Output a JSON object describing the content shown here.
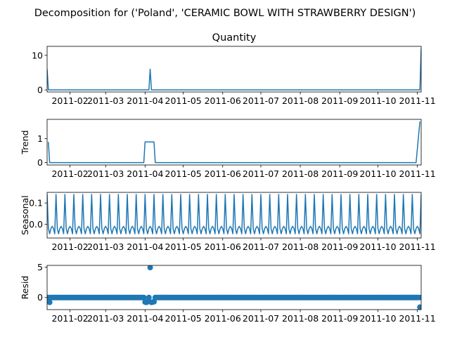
{
  "figure": {
    "suptitle": "Decomposition for ('Poland', 'CERAMIC BOWL WITH STRAWBERRY DESIGN')"
  },
  "colors": {
    "line": "#1f77b4",
    "axis": "#000000",
    "background": "#ffffff"
  },
  "chart_data": [
    {
      "type": "line",
      "title": "Quantity",
      "ylabel": "",
      "x_start": "2011-01-14",
      "x_end": "2011-11-04",
      "ylim": [
        -0.6,
        12.6
      ],
      "yticks": [
        "0",
        "10"
      ],
      "ytick_values": [
        0,
        10
      ],
      "xticks": [
        "2011-02",
        "2011-03",
        "2011-04",
        "2011-05",
        "2011-06",
        "2011-07",
        "2011-08",
        "2011-09",
        "2011-10",
        "2011-11"
      ],
      "xtick_dates": [
        "2011-02-01",
        "2011-03-01",
        "2011-04-01",
        "2011-05-01",
        "2011-06-01",
        "2011-07-01",
        "2011-08-01",
        "2011-09-01",
        "2011-10-01",
        "2011-11-01"
      ],
      "series": [
        {
          "x": [
            "2011-01-14",
            "2011-01-15",
            "2011-04-04",
            "2011-04-05",
            "2011-04-06",
            "2011-11-02",
            "2011-11-03",
            "2011-11-04"
          ],
          "values": [
            6,
            0,
            0,
            6,
            0,
            0,
            0,
            12
          ]
        }
      ]
    },
    {
      "type": "line",
      "title": "",
      "ylabel": "Trend",
      "x_start": "2011-01-14",
      "x_end": "2011-11-04",
      "ylim": [
        -0.1,
        1.8
      ],
      "yticks": [
        "0",
        "1"
      ],
      "ytick_values": [
        0,
        1
      ],
      "xticks": [
        "2011-02",
        "2011-03",
        "2011-04",
        "2011-05",
        "2011-06",
        "2011-07",
        "2011-08",
        "2011-09",
        "2011-10",
        "2011-11"
      ],
      "xtick_dates": [
        "2011-02-01",
        "2011-03-01",
        "2011-04-01",
        "2011-05-01",
        "2011-06-01",
        "2011-07-01",
        "2011-08-01",
        "2011-09-01",
        "2011-10-01",
        "2011-11-01"
      ],
      "series": [
        {
          "x": [
            "2011-01-15",
            "2011-01-16",
            "2011-03-31",
            "2011-04-01",
            "2011-04-08",
            "2011-04-09",
            "2011-10-31",
            "2011-11-03"
          ],
          "values": [
            0.86,
            0,
            0,
            0.86,
            0.86,
            0,
            0,
            1.71
          ]
        }
      ]
    },
    {
      "type": "line",
      "title": "",
      "ylabel": "Seasonal",
      "x_start": "2011-01-14",
      "x_end": "2011-11-04",
      "ylim": [
        -0.065,
        0.15
      ],
      "yticks": [
        "0.0",
        "0.1"
      ],
      "ytick_values": [
        0,
        0.1
      ],
      "xticks": [
        "2011-02",
        "2011-03",
        "2011-04",
        "2011-05",
        "2011-06",
        "2011-07",
        "2011-08",
        "2011-09",
        "2011-10",
        "2011-11"
      ],
      "xtick_dates": [
        "2011-02-01",
        "2011-03-01",
        "2011-04-01",
        "2011-05-01",
        "2011-06-01",
        "2011-07-01",
        "2011-08-01",
        "2011-09-01",
        "2011-10-01",
        "2011-11-01"
      ],
      "period_days": 7,
      "weekly_pattern": [
        0.14,
        -0.02,
        -0.045,
        -0.02,
        -0.01,
        -0.02,
        -0.045
      ],
      "series": [
        {
          "x_start": "2011-01-14",
          "x_end": "2011-11-04"
        }
      ]
    },
    {
      "type": "scatter",
      "title": "",
      "ylabel": "Resid",
      "x_start": "2011-01-14",
      "x_end": "2011-11-04",
      "ylim": [
        -2.0,
        5.3
      ],
      "yticks": [
        "0",
        "5"
      ],
      "ytick_values": [
        0,
        5
      ],
      "xticks": [
        "2011-02",
        "2011-03",
        "2011-04",
        "2011-05",
        "2011-06",
        "2011-07",
        "2011-08",
        "2011-09",
        "2011-10",
        "2011-11"
      ],
      "xtick_dates": [
        "2011-02-01",
        "2011-03-01",
        "2011-04-01",
        "2011-05-01",
        "2011-06-01",
        "2011-07-01",
        "2011-08-01",
        "2011-09-01",
        "2011-10-01",
        "2011-11-01"
      ],
      "baseline": 0.0,
      "outliers": [
        {
          "x": "2011-01-16",
          "y": -0.8
        },
        {
          "x": "2011-04-01",
          "y": -0.75
        },
        {
          "x": "2011-04-02",
          "y": -0.8
        },
        {
          "x": "2011-04-03",
          "y": -0.7
        },
        {
          "x": "2011-04-05",
          "y": 4.95
        },
        {
          "x": "2011-04-06",
          "y": -0.8
        },
        {
          "x": "2011-04-07",
          "y": -0.75
        },
        {
          "x": "2011-04-08",
          "y": -0.7
        },
        {
          "x": "2011-11-03",
          "y": -1.6
        }
      ]
    }
  ]
}
